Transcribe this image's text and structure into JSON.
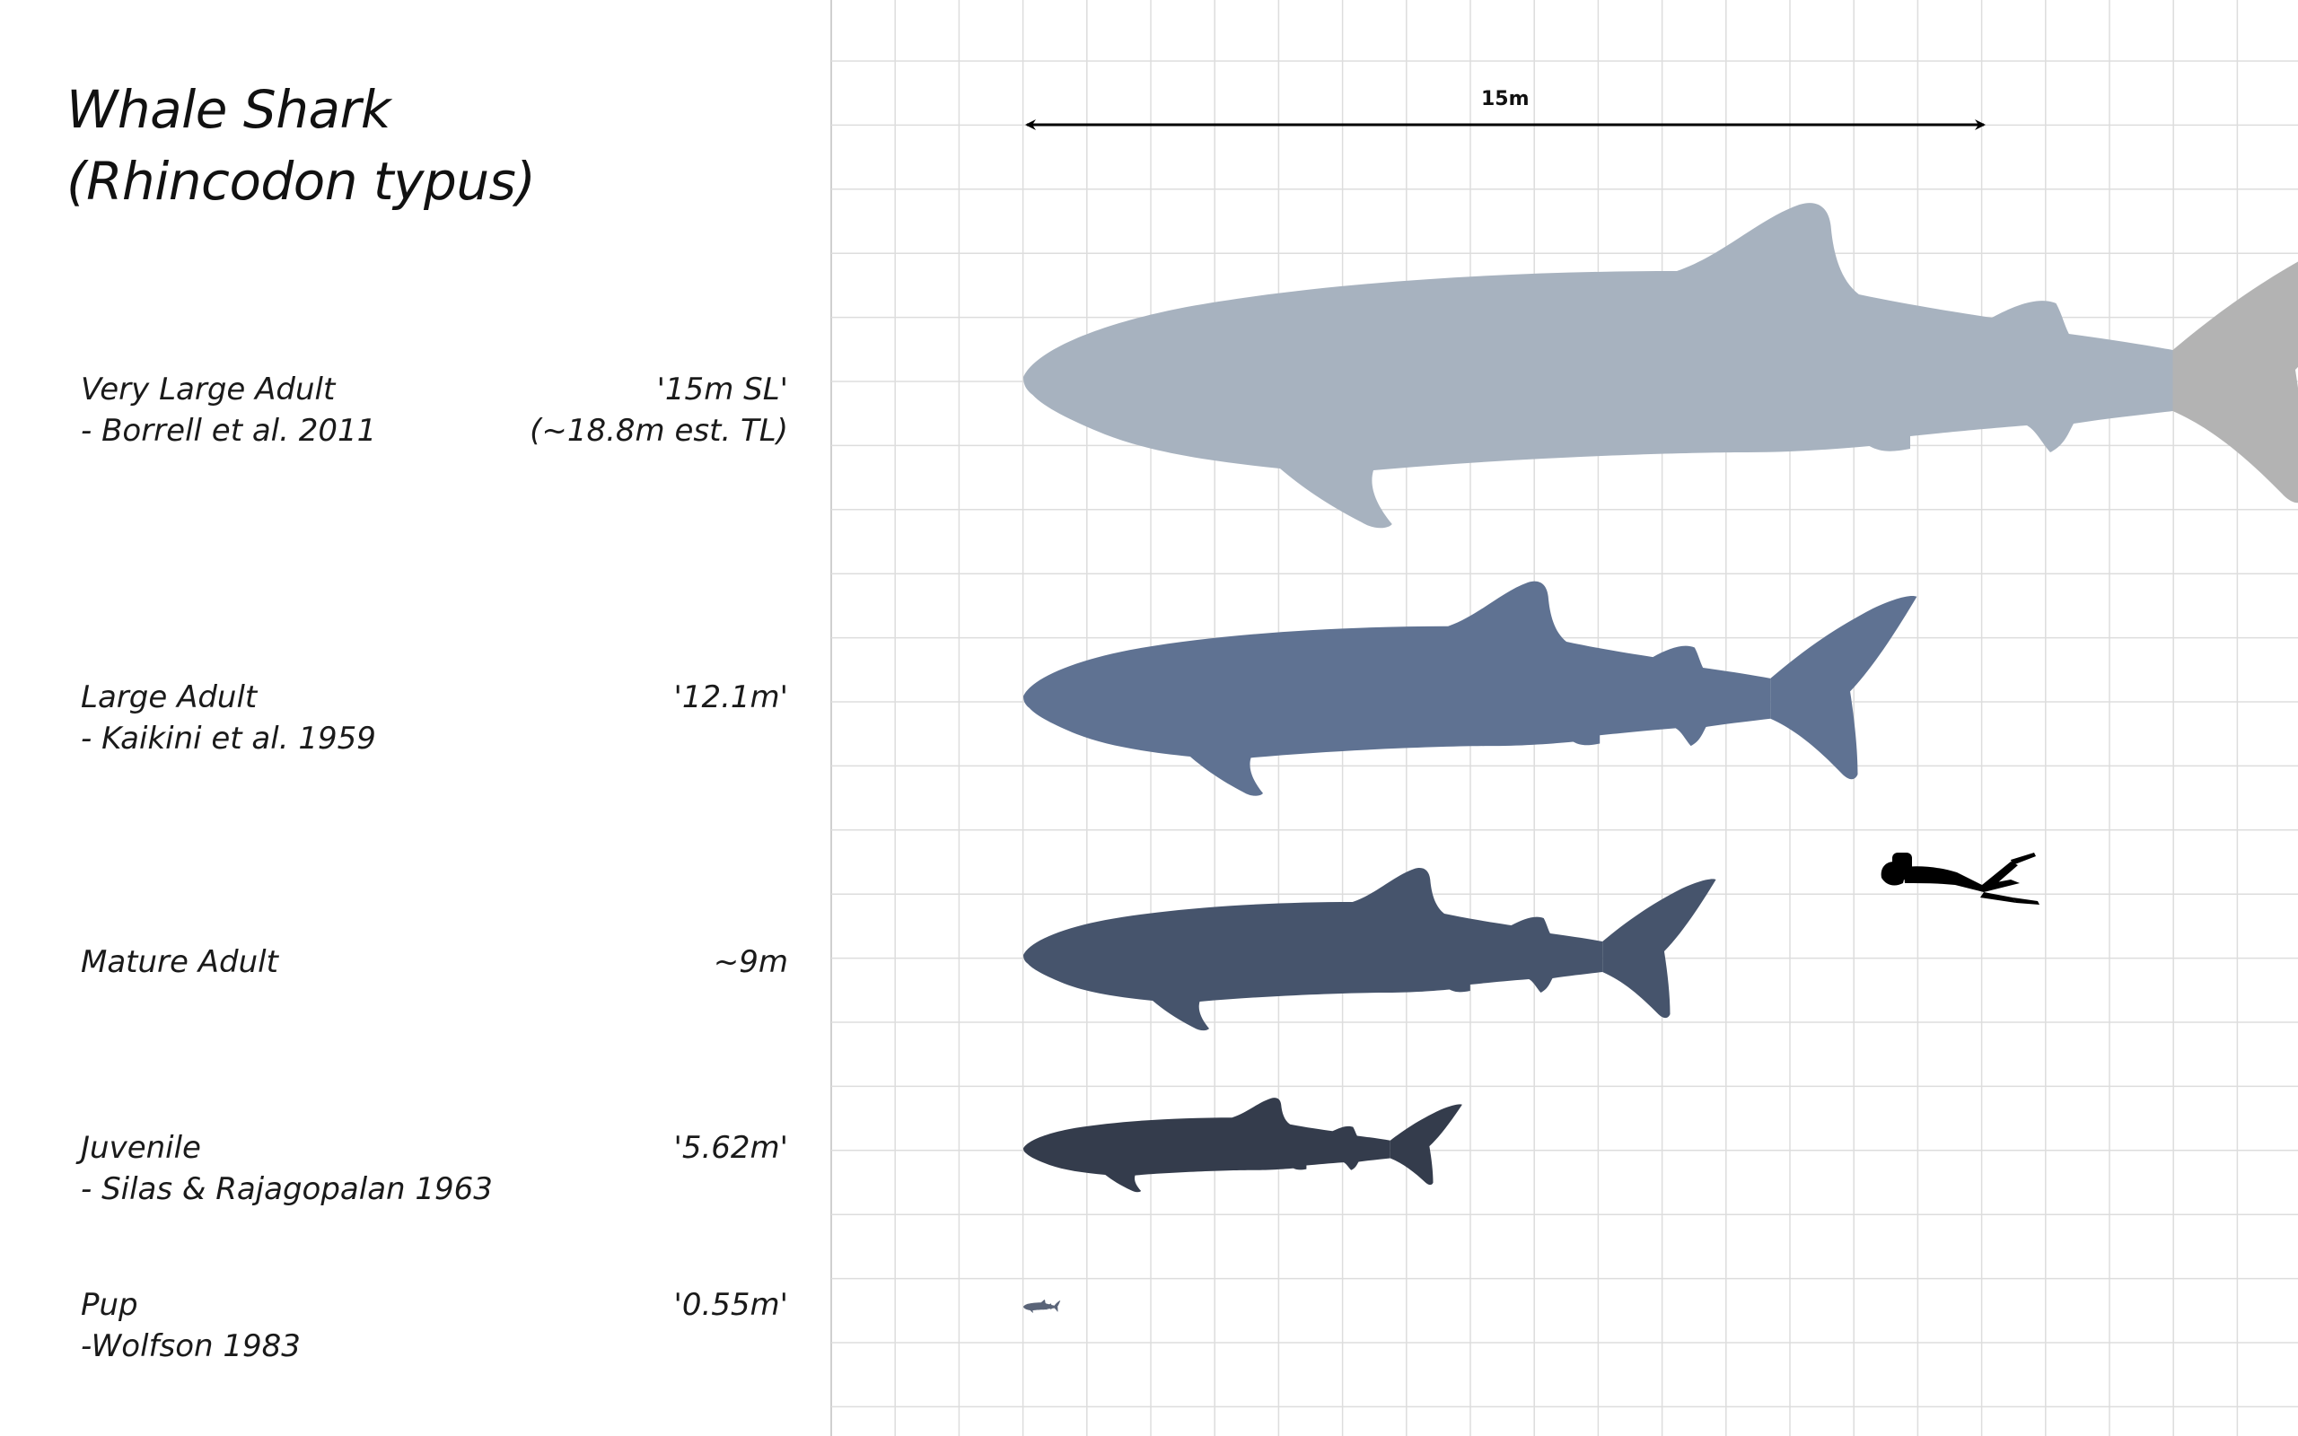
{
  "title": {
    "line1": "Whale Shark",
    "line2": "(Rhincodon typus)"
  },
  "scale_bar": {
    "label": "15m"
  },
  "entries": [
    {
      "name": "Very Large Adult",
      "source": "- Borrell et al. 2011",
      "size": "'15m SL'",
      "size_note": "(~18.8m est. TL)",
      "color": "#a7b2bf",
      "tail_color": "#b3b3b3"
    },
    {
      "name": "Large Adult",
      "source": "- Kaikini et al. 1959",
      "size": "'12.1m'",
      "color": "#5f7292"
    },
    {
      "name": "Mature Adult",
      "source": "",
      "size": "~9m",
      "color": "#46546c"
    },
    {
      "name": "Juvenile",
      "source": "- Silas & Rajagopalan 1963",
      "size": "'5.62m'",
      "color": "#343c4c"
    },
    {
      "name": "Pup",
      "source": "-Wolfson 1983",
      "size": "'0.55m'",
      "color": "#5a6478"
    }
  ],
  "diver": {
    "icon": "scuba-diver-icon",
    "color": "#000000"
  },
  "grid_color": "#dddddd"
}
